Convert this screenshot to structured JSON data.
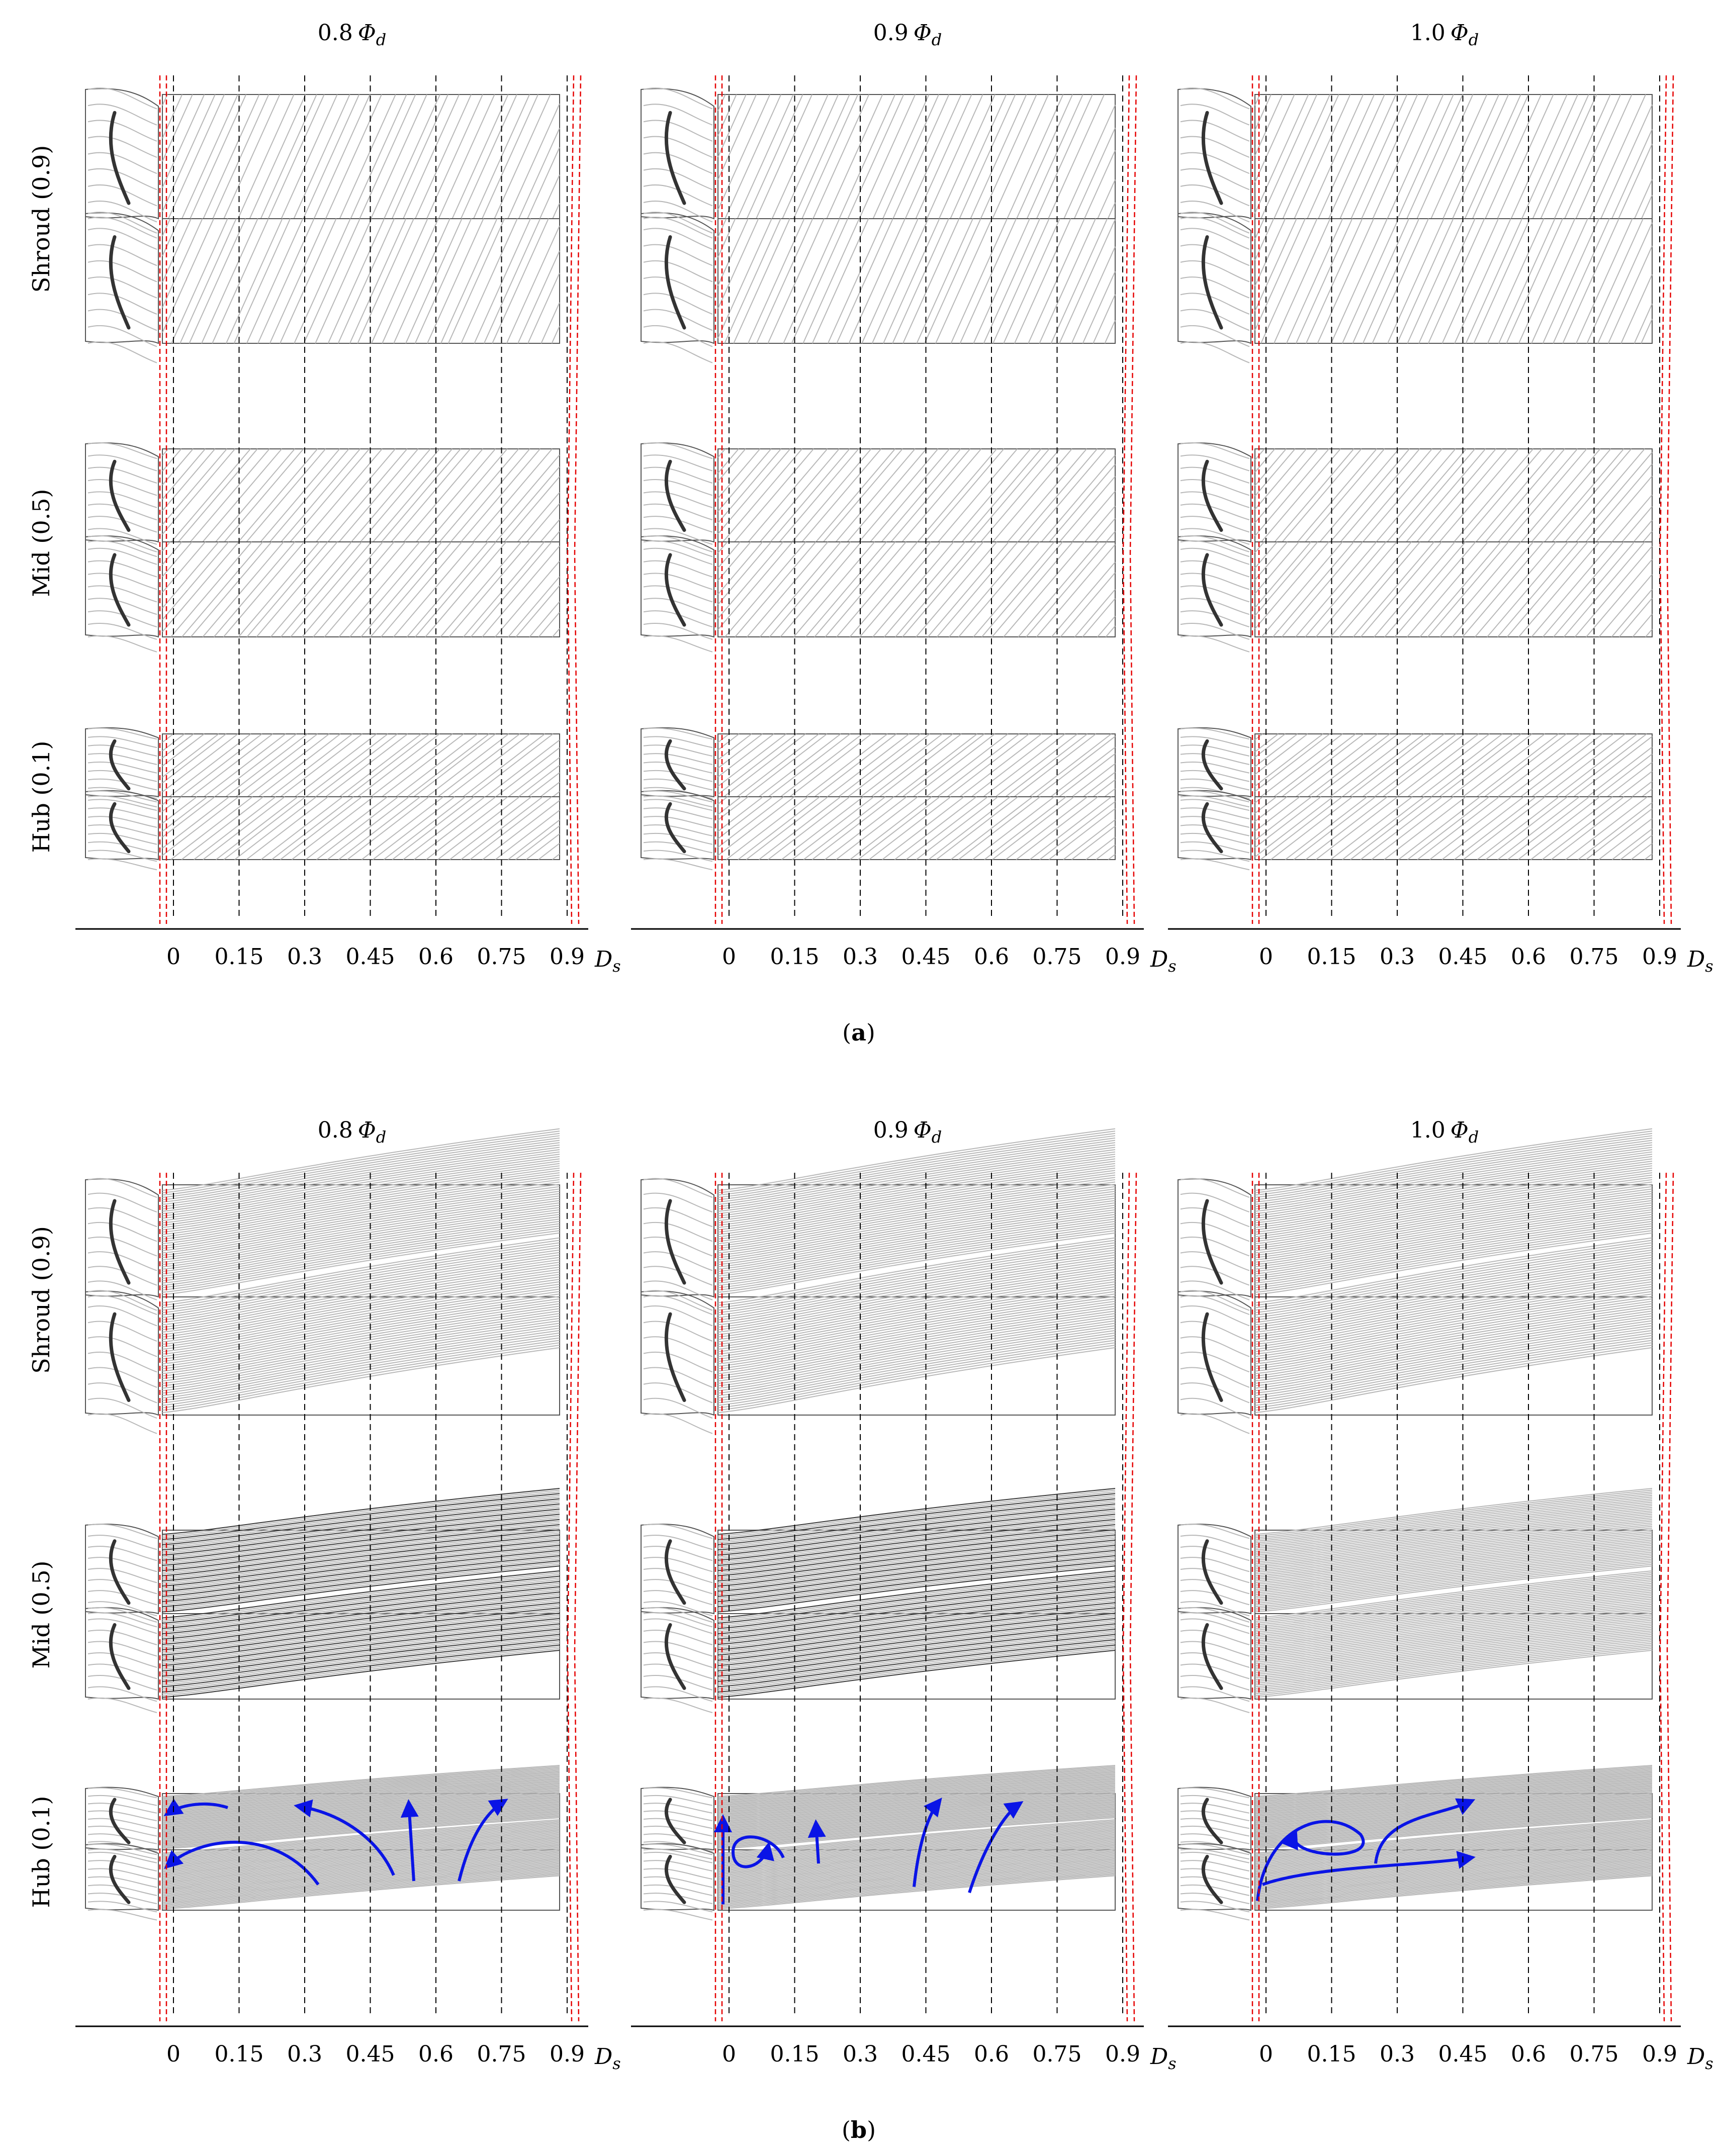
{
  "figure": {
    "subfigures": [
      {
        "id": "a",
        "label_open": "(",
        "label_letter": "a",
        "label_close": ")",
        "columns": [
          {
            "coef": "0.8",
            "phi": "Φ",
            "sub": "d"
          },
          {
            "coef": "0.9",
            "phi": "Φ",
            "sub": "d"
          },
          {
            "coef": "1.0",
            "phi": "Φ",
            "sub": "d"
          }
        ],
        "hub_vortex": [
          false,
          false,
          false
        ]
      },
      {
        "id": "b",
        "label_open": "(",
        "label_letter": "b",
        "label_close": ")",
        "columns": [
          {
            "coef": "0.8",
            "phi": "Φ",
            "sub": "d"
          },
          {
            "coef": "0.9",
            "phi": "Φ",
            "sub": "d"
          },
          {
            "coef": "1.0",
            "phi": "Φ",
            "sub": "d"
          }
        ],
        "hub_vortex": [
          true,
          true,
          true
        ]
      }
    ],
    "rows": [
      "Shroud (0.9)",
      "Mid (0.5)",
      "Hub (0.1)"
    ],
    "x_ticks": [
      "0",
      "0.15",
      "0.3",
      "0.45",
      "0.6",
      "0.75",
      "0.9"
    ],
    "x_tick_values": [
      0,
      0.15,
      0.3,
      0.45,
      0.6,
      0.75,
      0.9
    ],
    "axis_unit": {
      "symbol": "D",
      "sub": "s"
    }
  },
  "colors": {
    "streamline": "#b8b8b8",
    "streamline_dark": "#3a3a3a",
    "reference_line": "#e60000",
    "vortex_arrow": "#0a14e6",
    "guide_line": "#000000"
  }
}
